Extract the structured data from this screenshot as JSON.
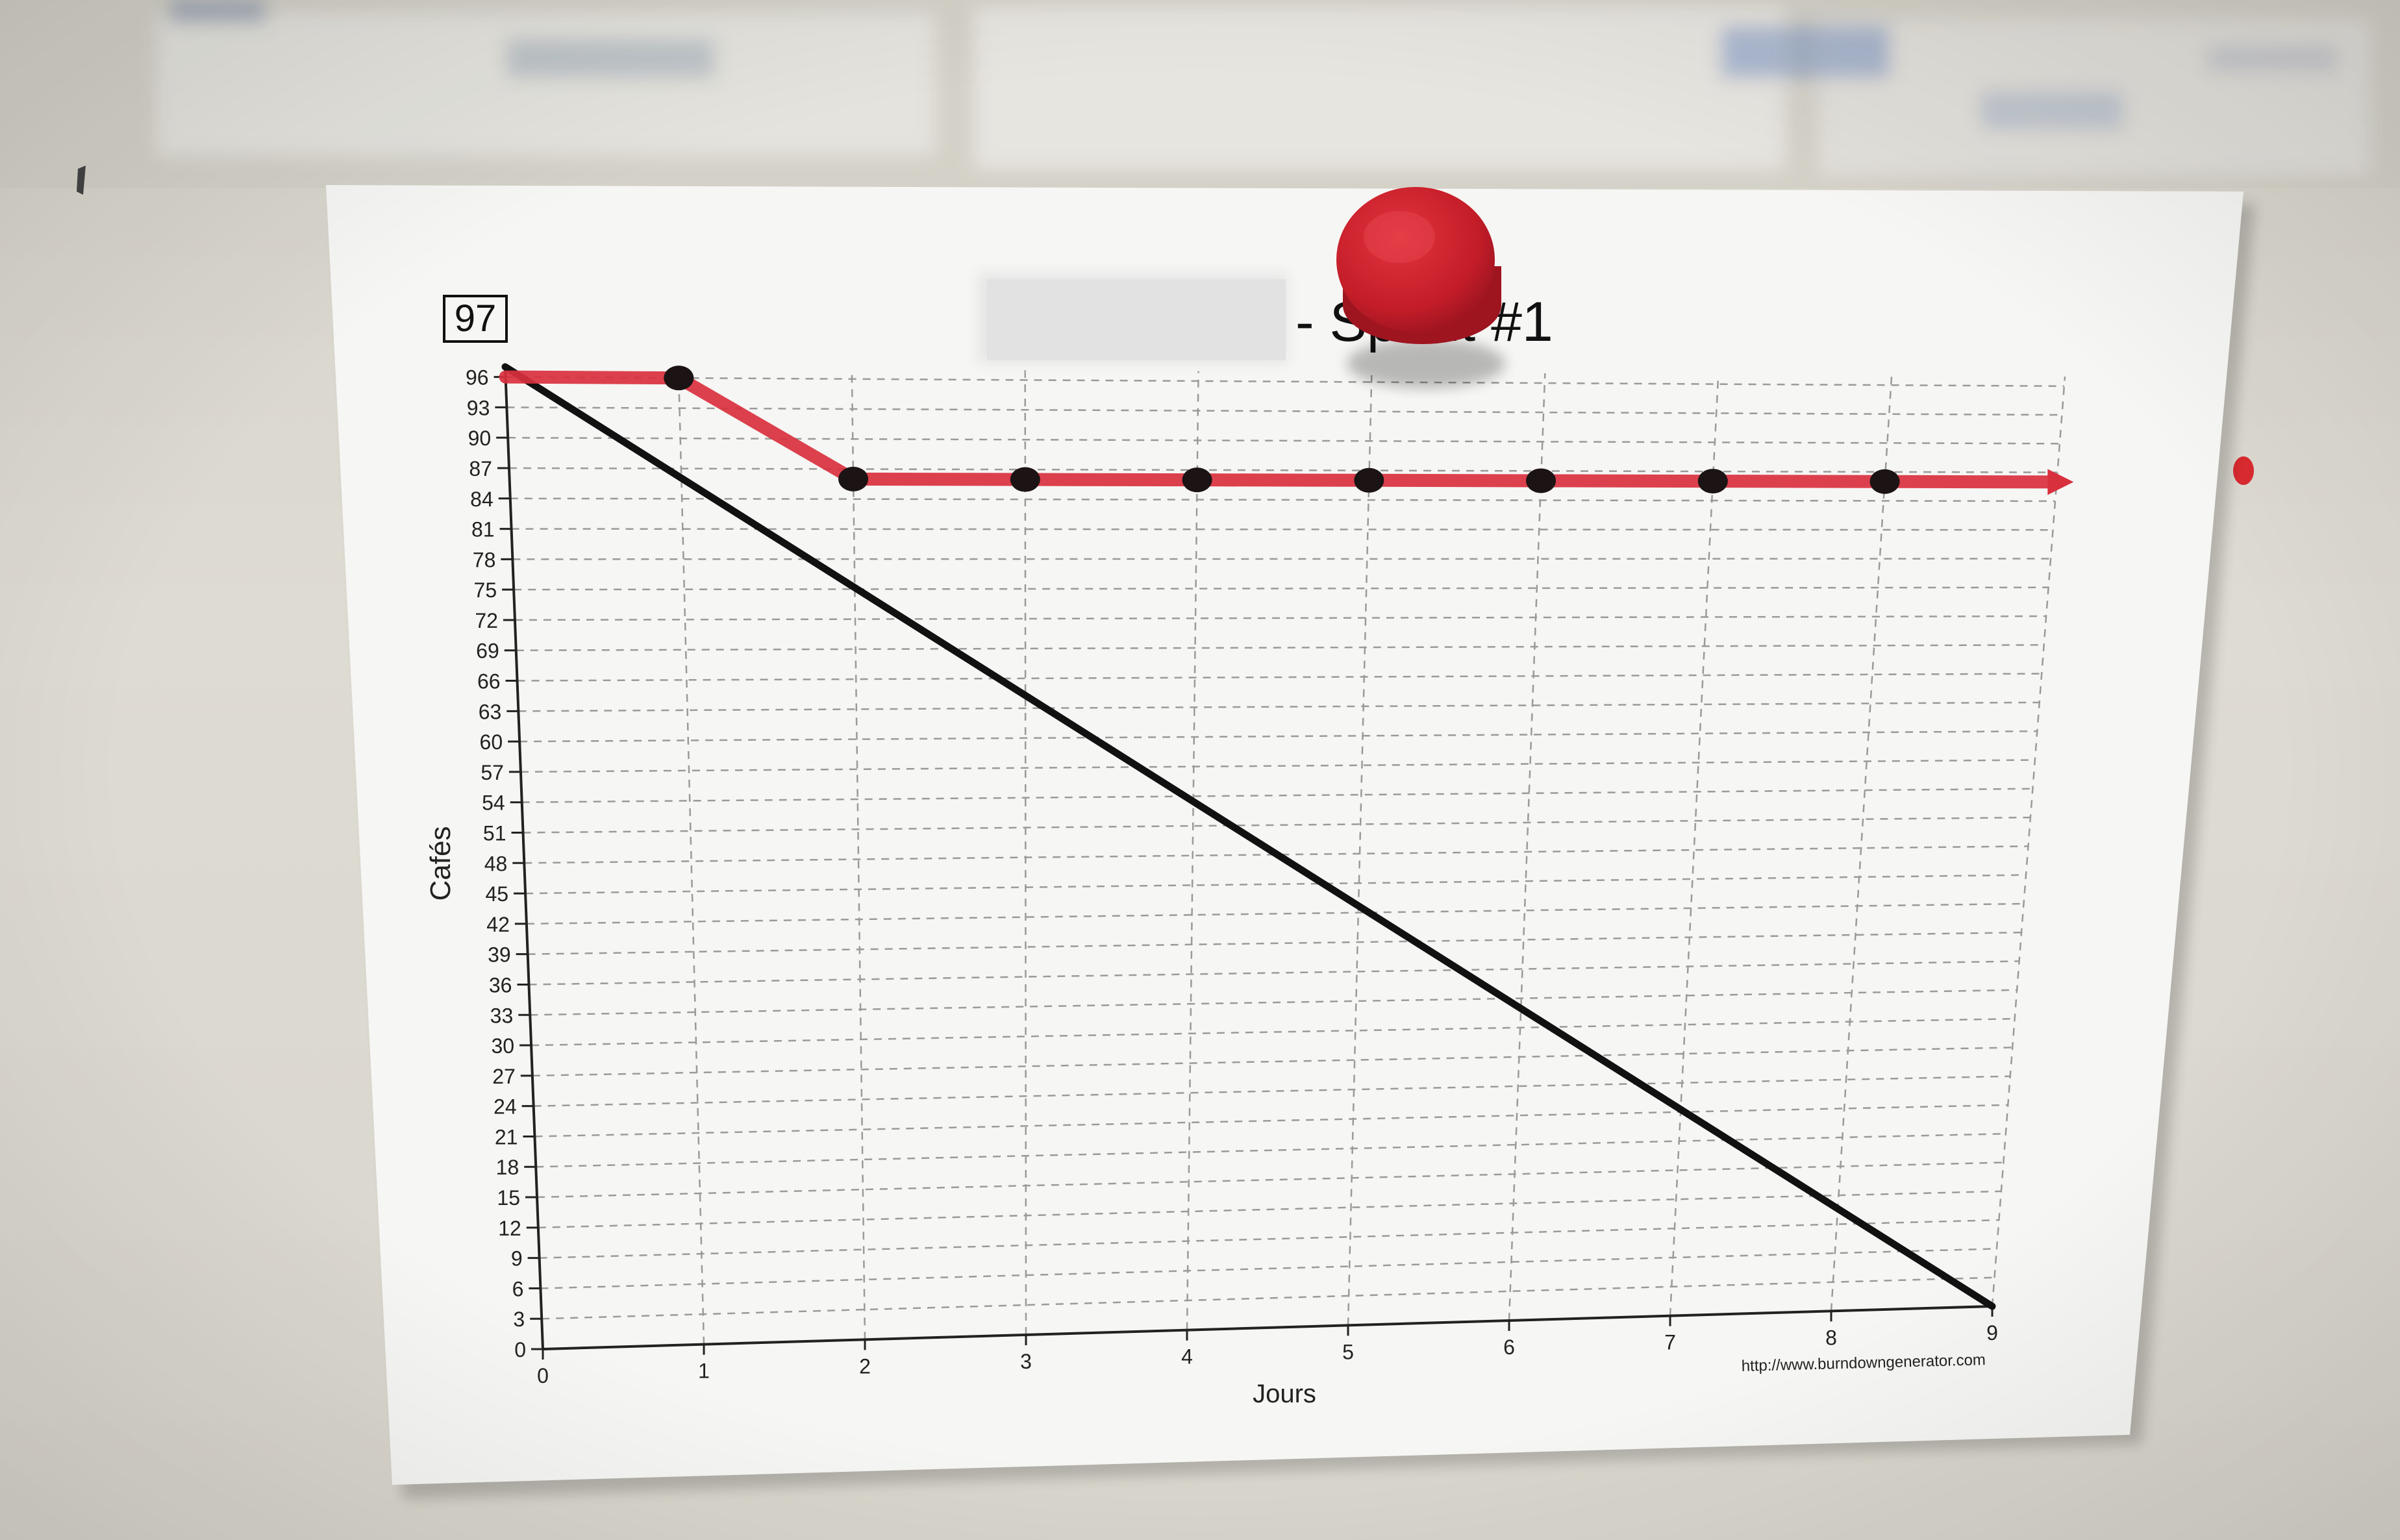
{
  "paper": {
    "total_box": "97",
    "title_suffix": "- Sprint #1",
    "source_url": "http://www.burndowngenerator.com",
    "colors": {
      "actual_line": "#d9303e",
      "ideal_line": "#111111",
      "magnet": "#c8202c",
      "paper": "#f7f7f5"
    }
  },
  "chart_data": {
    "type": "line",
    "xlabel": "Jours",
    "ylabel": "Cafés",
    "x_ticks": [
      0,
      1,
      2,
      3,
      4,
      5,
      6,
      7,
      8,
      9
    ],
    "y_ticks": [
      0,
      3,
      6,
      9,
      12,
      15,
      18,
      21,
      24,
      27,
      30,
      33,
      36,
      39,
      42,
      45,
      48,
      51,
      54,
      57,
      60,
      63,
      66,
      69,
      72,
      75,
      78,
      81,
      84,
      87,
      90,
      93,
      96
    ],
    "xlim": [
      0,
      9
    ],
    "ylim": [
      0,
      97
    ],
    "grid": true,
    "series": [
      {
        "role": "actual",
        "points": [
          [
            0,
            96
          ],
          [
            1,
            96
          ],
          [
            2,
            86
          ],
          [
            3,
            86
          ],
          [
            4,
            86
          ],
          [
            5,
            86
          ],
          [
            6,
            86
          ],
          [
            7,
            86
          ],
          [
            8,
            86
          ]
        ],
        "end": [
          9,
          86
        ]
      },
      {
        "role": "ideal",
        "points": [
          [
            0,
            97
          ],
          [
            9,
            0
          ]
        ]
      }
    ]
  }
}
